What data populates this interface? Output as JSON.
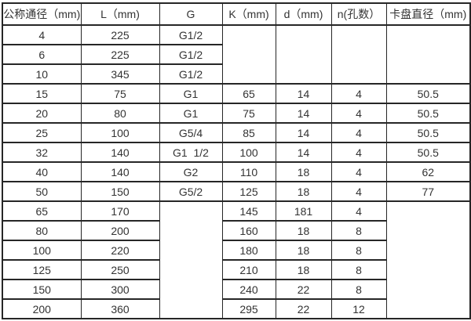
{
  "colors": {
    "border": "#262626",
    "text": "#333333",
    "background": "#ffffff"
  },
  "table": {
    "headers": [
      "公称通径（mm)",
      "L（mm)",
      "G",
      "K（mm)",
      "d（mm)",
      "n(孔数）",
      "卡盘直径（mm)"
    ],
    "rows": [
      {
        "cells": [
          {
            "t": "4"
          },
          {
            "t": "225"
          },
          {
            "t": "G1/2"
          },
          {
            "t": "",
            "rs": 3
          },
          {
            "t": "",
            "rs": 3
          },
          {
            "t": "",
            "rs": 3
          },
          {
            "t": "",
            "rs": 3
          }
        ]
      },
      {
        "cells": [
          {
            "t": "6"
          },
          {
            "t": "225"
          },
          {
            "t": "G1/2"
          }
        ]
      },
      {
        "cells": [
          {
            "t": "10"
          },
          {
            "t": "345"
          },
          {
            "t": "G1/2"
          }
        ]
      },
      {
        "cells": [
          {
            "t": "15"
          },
          {
            "t": "75"
          },
          {
            "t": "G1"
          },
          {
            "t": "65"
          },
          {
            "t": "14"
          },
          {
            "t": "4"
          },
          {
            "t": "50.5"
          }
        ]
      },
      {
        "cells": [
          {
            "t": "20"
          },
          {
            "t": "80"
          },
          {
            "t": "G1"
          },
          {
            "t": "75"
          },
          {
            "t": "14"
          },
          {
            "t": "4"
          },
          {
            "t": "50.5"
          }
        ]
      },
      {
        "cells": [
          {
            "t": "25"
          },
          {
            "t": "100"
          },
          {
            "t": "G5/4"
          },
          {
            "t": "85"
          },
          {
            "t": "14"
          },
          {
            "t": "4"
          },
          {
            "t": "50.5"
          }
        ]
      },
      {
        "cells": [
          {
            "t": "32"
          },
          {
            "t": "140"
          },
          {
            "t": "G1  1/2"
          },
          {
            "t": "100"
          },
          {
            "t": "14"
          },
          {
            "t": "4"
          },
          {
            "t": "50.5"
          }
        ]
      },
      {
        "cells": [
          {
            "t": "40"
          },
          {
            "t": "140"
          },
          {
            "t": "G2"
          },
          {
            "t": "110"
          },
          {
            "t": "18"
          },
          {
            "t": "4"
          },
          {
            "t": "62"
          }
        ]
      },
      {
        "cells": [
          {
            "t": "50"
          },
          {
            "t": "150"
          },
          {
            "t": "G5/2"
          },
          {
            "t": "125"
          },
          {
            "t": "18"
          },
          {
            "t": "4"
          },
          {
            "t": "77"
          }
        ]
      },
      {
        "cells": [
          {
            "t": "65"
          },
          {
            "t": "170"
          },
          {
            "t": "",
            "rs": 6
          },
          {
            "t": "145"
          },
          {
            "t": "181"
          },
          {
            "t": "4"
          },
          {
            "t": "",
            "rs": 6
          }
        ]
      },
      {
        "cells": [
          {
            "t": "80"
          },
          {
            "t": "200"
          },
          {
            "t": "160"
          },
          {
            "t": "18"
          },
          {
            "t": "8"
          }
        ]
      },
      {
        "cells": [
          {
            "t": "100"
          },
          {
            "t": "220"
          },
          {
            "t": "180"
          },
          {
            "t": "18"
          },
          {
            "t": "8"
          }
        ]
      },
      {
        "cells": [
          {
            "t": "125"
          },
          {
            "t": "250"
          },
          {
            "t": "210"
          },
          {
            "t": "18"
          },
          {
            "t": "8"
          }
        ]
      },
      {
        "cells": [
          {
            "t": "150"
          },
          {
            "t": "300"
          },
          {
            "t": "240"
          },
          {
            "t": "22"
          },
          {
            "t": "8"
          }
        ]
      },
      {
        "cells": [
          {
            "t": "200"
          },
          {
            "t": "360"
          },
          {
            "t": "295"
          },
          {
            "t": "22"
          },
          {
            "t": "12"
          }
        ]
      }
    ]
  }
}
